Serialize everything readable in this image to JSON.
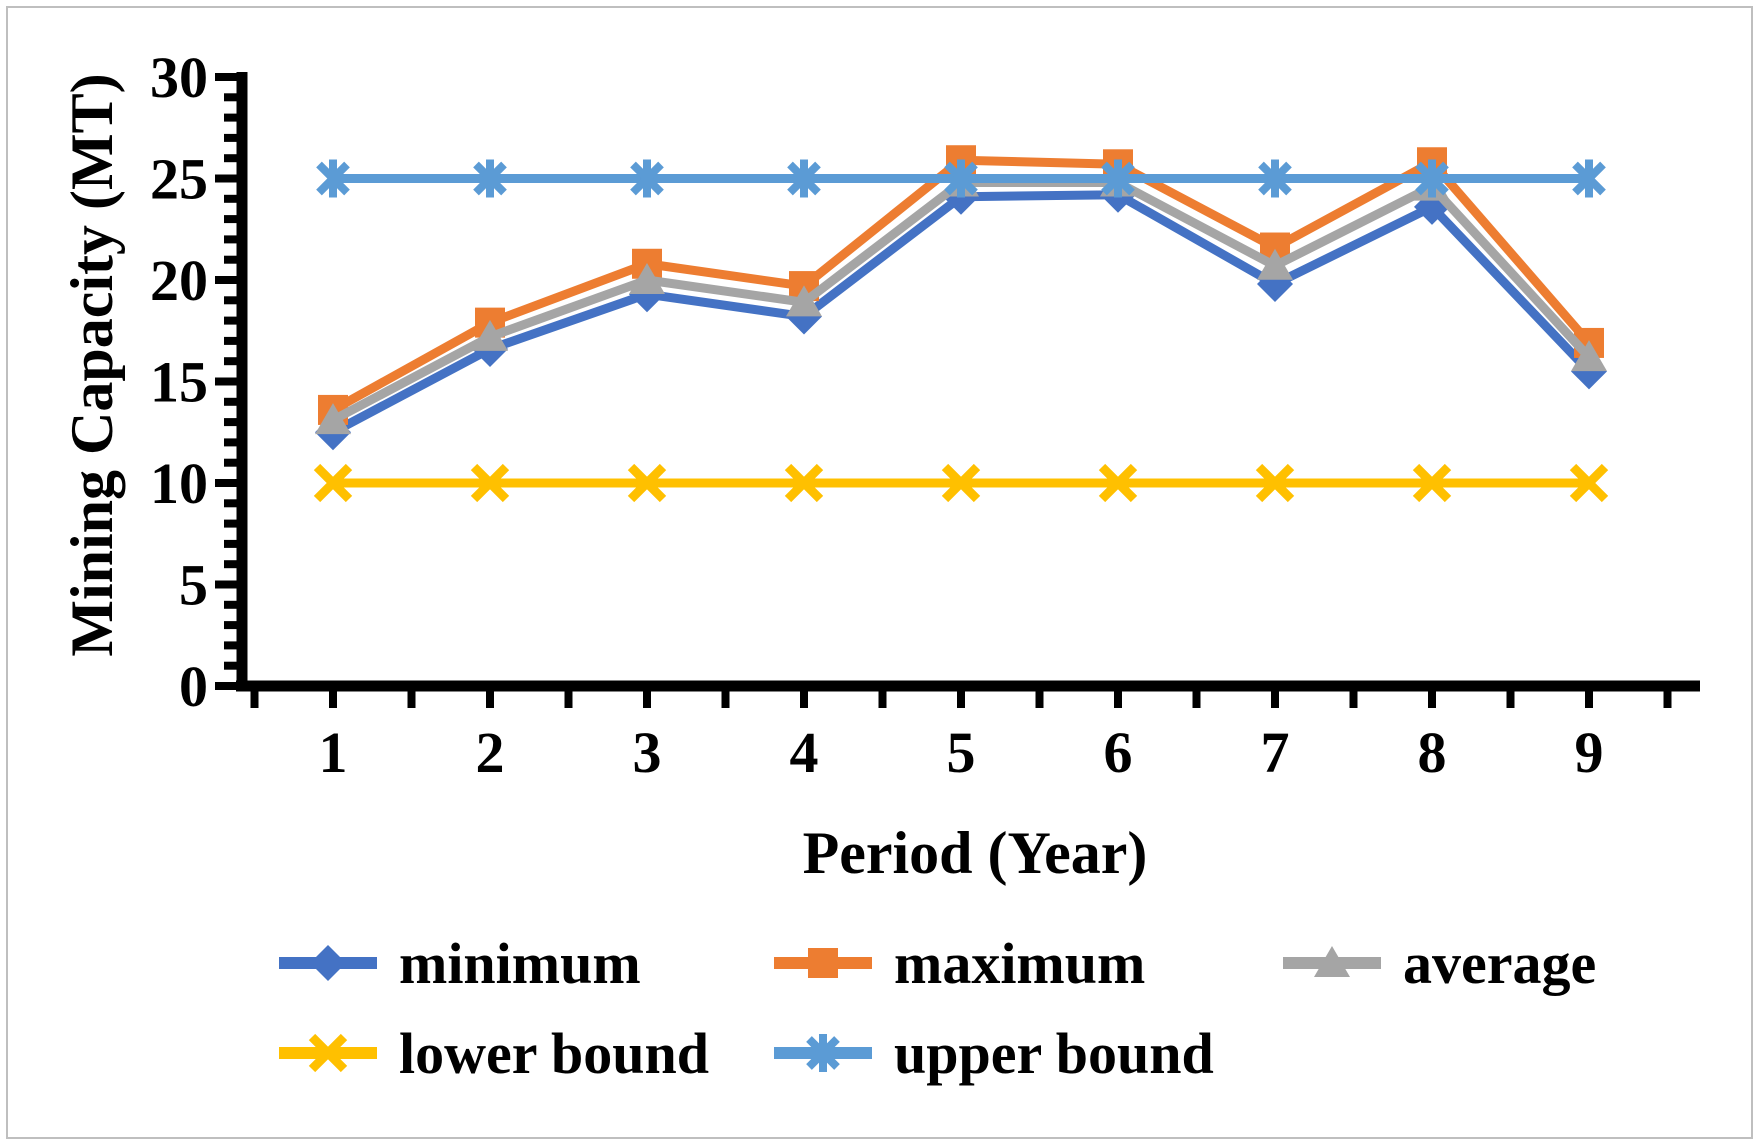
{
  "figure": {
    "background": "#FFFFFF",
    "border_color": "#BFBFBF",
    "axis_color": "#000000",
    "text_color": "#000000"
  },
  "chart_data": {
    "type": "line",
    "title": "",
    "xlabel": "Period (Year)",
    "ylabel": "Mining Capacity (MT)",
    "categories": [
      "1",
      "2",
      "3",
      "4",
      "5",
      "6",
      "7",
      "8",
      "9"
    ],
    "ylim": [
      0,
      30
    ],
    "y_major_unit": 5,
    "y_minor_unit": 1,
    "y_major_ticks": [
      "0",
      "5",
      "10",
      "15",
      "20",
      "25",
      "30"
    ],
    "grid": "off",
    "legend_position": "bottom",
    "legend_rows": [
      [
        "minimum",
        "maximum",
        "average"
      ],
      [
        "lower bound",
        "upper bound"
      ]
    ],
    "series": [
      {
        "name": "minimum",
        "marker": "diamond",
        "color": "#4472C4",
        "values": [
          12.5,
          16.6,
          19.3,
          18.2,
          24.1,
          24.2,
          19.8,
          23.6,
          15.5
        ]
      },
      {
        "name": "maximum",
        "marker": "square",
        "color": "#ED7D31",
        "values": [
          13.6,
          17.9,
          20.8,
          19.7,
          25.9,
          25.7,
          21.6,
          25.8,
          16.9
        ]
      },
      {
        "name": "average",
        "marker": "triangle",
        "color": "#A5A5A5",
        "values": [
          13.1,
          17.2,
          20.0,
          18.9,
          24.8,
          24.8,
          20.7,
          24.6,
          16.2
        ]
      },
      {
        "name": "lower bound",
        "marker": "x-cross",
        "color": "#FFC000",
        "values": [
          10,
          10,
          10,
          10,
          10,
          10,
          10,
          10,
          10
        ]
      },
      {
        "name": "upper bound",
        "marker": "asterisk",
        "color": "#5B9BD5",
        "values": [
          25,
          25,
          25,
          25,
          25,
          25,
          25,
          25,
          25
        ]
      }
    ]
  }
}
